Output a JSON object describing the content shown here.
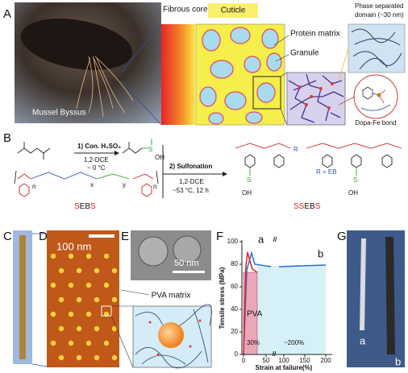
{
  "panels": {
    "A": {
      "label": "A",
      "photo_caption": "Mussel Byssus",
      "fibrous_core": "Fibrous core",
      "cuticle": "Cuticle",
      "protein_matrix": "Protein matrix",
      "granule": "Granule",
      "phase_separated": [
        "Phase separated",
        "domain (~30 nm)"
      ],
      "dopa_fe": "Dopa-Fe bond"
    },
    "B": {
      "label": "B",
      "step1": "1) Con. H₂SO₄",
      "step1_solvent": "1,2-DCE",
      "step1_temp": "~ 0 °C",
      "step2": "2) Sulfonation",
      "step2_solvent": "1,2-DCE",
      "step2_cond": "~53 °C, 12 h",
      "sebs": [
        "S",
        "EB",
        "S"
      ],
      "ssebs": [
        "SS",
        "EB",
        "S"
      ],
      "r_def": "R = EB",
      "oh": "OH",
      "so3h": "S",
      "n": "n",
      "x": "x",
      "y": "y",
      "r": "R"
    },
    "C": {
      "label": "C"
    },
    "D": {
      "label": "D",
      "scale": "100 nm"
    },
    "E": {
      "label": "E",
      "scale": "50 nm",
      "matrix": "PVA matrix"
    },
    "F": {
      "label": "F",
      "ylabel": "Tensile stress (MPa)",
      "xlabel": "Strain at failure(%)",
      "yticks": [
        0,
        20,
        40,
        60,
        80,
        100
      ],
      "xticks": [
        0,
        50,
        100,
        150,
        200
      ],
      "curve_a": "a",
      "curve_b": "b",
      "pva": "PVA",
      "pct_a": "30%",
      "pct_b": "~200%",
      "break": "//"
    },
    "G": {
      "label": "G",
      "a": "a",
      "b": "b"
    }
  }
}
